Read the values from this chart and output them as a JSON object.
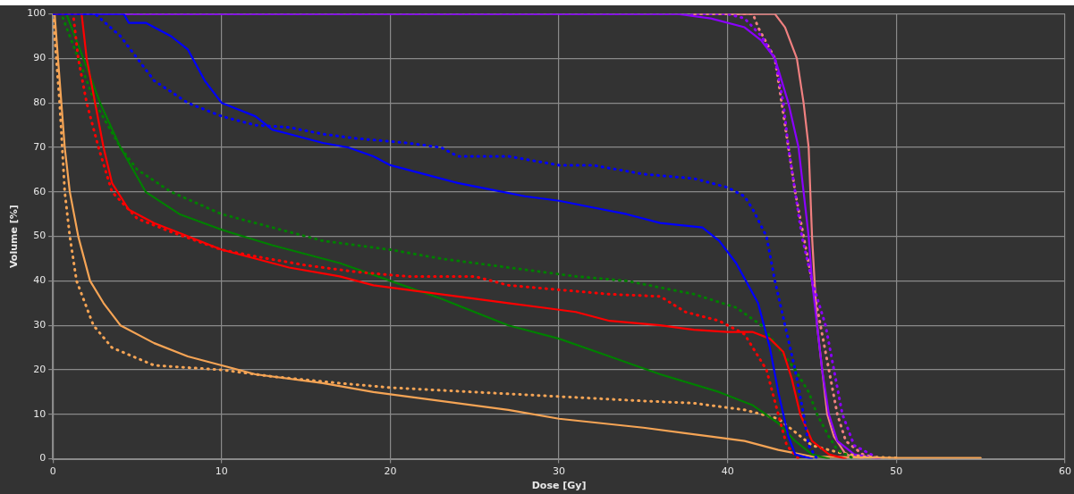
{
  "chart_data": {
    "type": "line",
    "xlabel": "Dose [Gy]",
    "ylabel": "Volume [%]",
    "xlim": [
      0,
      60
    ],
    "xticks": [
      0,
      10,
      20,
      30,
      40,
      50,
      60
    ],
    "ylim": [
      0,
      100
    ],
    "yticks": [
      0,
      10,
      20,
      30,
      40,
      50,
      60,
      70,
      80,
      90,
      100
    ],
    "grid": true,
    "legend": false,
    "marker": "none",
    "series": [
      {
        "color": "#0000ff",
        "line_style": "solid",
        "x": [
          0,
          4.2,
          4.5,
          5.5,
          7,
          8,
          9,
          10,
          12,
          13,
          14,
          16,
          17.5,
          19,
          20,
          22,
          24,
          26,
          28,
          30,
          32,
          34,
          36,
          38.5,
          39.5,
          40.5,
          41.8,
          42.5,
          43,
          43.6,
          44,
          45
        ],
        "values": [
          100,
          100,
          98,
          98,
          95,
          92,
          85,
          80,
          77,
          74,
          73,
          71,
          70,
          68,
          66,
          64,
          62,
          60.5,
          59,
          58,
          56.5,
          55,
          53,
          52,
          49,
          44,
          35,
          25,
          15,
          5,
          1,
          0
        ]
      },
      {
        "color": "#0000ff",
        "line_style": "dotted",
        "x": [
          0,
          2.5,
          4,
          5,
          6,
          8,
          10,
          12,
          14,
          16,
          18,
          21,
          23,
          24,
          27,
          30,
          32,
          35,
          38,
          40,
          41,
          41.5,
          42.3,
          42.8,
          43.4,
          44,
          44.5,
          44.8,
          45.3
        ],
        "values": [
          100,
          100,
          95,
          90,
          85,
          80,
          77,
          75,
          74.5,
          73,
          72,
          71,
          70,
          68,
          68,
          66,
          66,
          64,
          63,
          61,
          59,
          56,
          50,
          40,
          30,
          20,
          10,
          3,
          0
        ]
      },
      {
        "color": "#ff0000",
        "line_style": "solid",
        "x": [
          0,
          1.7,
          2,
          2.5,
          3,
          3.5,
          4.5,
          6,
          8,
          10,
          12,
          14,
          17,
          19,
          21,
          24,
          27,
          29,
          31,
          33,
          36,
          38,
          40,
          41.5,
          42.5,
          43.3,
          43.8,
          44.3,
          45,
          46,
          47
        ],
        "values": [
          100,
          100,
          90,
          80,
          70,
          62,
          56,
          53,
          50,
          47,
          45,
          43,
          41,
          39,
          38,
          36.5,
          35,
          34,
          33,
          31,
          30,
          29,
          28.5,
          28.5,
          27,
          24,
          18,
          10,
          4,
          1,
          0
        ]
      },
      {
        "color": "#ff0000",
        "line_style": "dotted",
        "x": [
          0,
          1.2,
          1.5,
          2,
          2.7,
          3.5,
          5,
          7,
          10,
          12,
          15,
          18,
          21,
          25,
          27,
          30,
          33,
          36,
          37.5,
          39.5,
          41,
          42.3,
          43,
          43.5,
          44.2
        ],
        "values": [
          100,
          100,
          90,
          80,
          70,
          60,
          54,
          51,
          47,
          45.5,
          43.5,
          42,
          41,
          41,
          39,
          38,
          37,
          36.5,
          33,
          31,
          28,
          20,
          10,
          3,
          0
        ]
      },
      {
        "color": "#007f00",
        "line_style": "solid",
        "x": [
          0,
          0.8,
          1.8,
          2.8,
          4,
          5.5,
          7.5,
          10,
          13,
          17,
          20,
          23,
          27,
          30,
          33,
          36,
          39.5,
          41.5,
          43,
          44,
          45,
          46
        ],
        "values": [
          100,
          100,
          90,
          80,
          70,
          60,
          55,
          51.5,
          48,
          44,
          40,
          36,
          30,
          27,
          23,
          19,
          15,
          12,
          8,
          4,
          1,
          0
        ]
      },
      {
        "color": "#007f00",
        "line_style": "dotted",
        "x": [
          0,
          0.5,
          1.5,
          2.5,
          4,
          5,
          7,
          10,
          13,
          16,
          20,
          23,
          27,
          31,
          34,
          38,
          40.5,
          42,
          43,
          44,
          44.8,
          45.3,
          46,
          46.5,
          47.5
        ],
        "values": [
          100,
          100,
          90,
          80,
          70,
          65,
          60,
          55,
          52,
          49,
          47,
          45,
          43,
          41,
          40,
          37,
          34,
          30,
          25,
          20,
          15,
          10,
          5,
          2,
          0
        ]
      },
      {
        "color": "#f5a455",
        "line_style": "solid",
        "x": [
          0,
          0.1,
          0.3,
          0.5,
          0.7,
          1,
          1.5,
          2.2,
          3,
          4,
          6,
          8,
          10,
          12,
          16,
          19,
          22,
          27,
          30,
          35,
          39,
          41,
          43,
          45,
          50,
          55
        ],
        "values": [
          100,
          100,
          90,
          80,
          70,
          60,
          50,
          40,
          35,
          30,
          26,
          23,
          21,
          19,
          17,
          15,
          13.5,
          11,
          9,
          7,
          5,
          4,
          2,
          0.5,
          0.2,
          0.2
        ]
      },
      {
        "color": "#f5a455",
        "line_style": "dotted",
        "x": [
          0,
          0.2,
          0.4,
          0.7,
          1,
          1.4,
          2.4,
          3.5,
          6,
          10,
          13,
          17,
          20,
          25,
          30,
          35,
          38,
          41,
          43,
          44,
          45,
          46.5,
          48,
          50
        ],
        "values": [
          100,
          90,
          80,
          60,
          50,
          40,
          30,
          25,
          21,
          20,
          18.5,
          17,
          16,
          15,
          14,
          13,
          12.5,
          11,
          9,
          6,
          3,
          1.5,
          0.5,
          0.2
        ]
      },
      {
        "color": "#8b00ff",
        "line_style": "solid",
        "x": [
          0,
          37,
          39,
          41,
          42,
          42.8,
          43.6,
          44.2,
          44.5,
          44.8,
          45,
          45.3,
          45.6,
          46,
          46.5,
          47.5,
          49
        ],
        "values": [
          100,
          100,
          99,
          97,
          94,
          90,
          80,
          70,
          60,
          50,
          40,
          30,
          20,
          10,
          4,
          1,
          0
        ]
      },
      {
        "color": "#8b00ff",
        "line_style": "dotted",
        "x": [
          0,
          40,
          41,
          42,
          42.8,
          43.3,
          43.6,
          44,
          44.4,
          45,
          45.8,
          46.3,
          46.8,
          47.5,
          49
        ],
        "values": [
          100,
          100,
          99,
          95,
          90,
          80,
          70,
          60,
          50,
          40,
          30,
          20,
          10,
          3,
          0
        ]
      },
      {
        "color": "#f08080",
        "line_style": "solid",
        "x": [
          38,
          42.8,
          43.4,
          44.1,
          44.5,
          44.8,
          45,
          45.3,
          45.6,
          45.9,
          46.3,
          47,
          48
        ],
        "values": [
          100,
          100,
          97,
          90,
          80,
          70,
          50,
          30,
          20,
          10,
          5,
          1,
          0
        ]
      },
      {
        "color": "#f08080",
        "line_style": "dotted",
        "x": [
          38,
          41.5,
          41.8,
          42.8,
          43.2,
          43.6,
          44,
          44.5,
          45,
          45.5,
          46,
          46.5,
          47,
          48,
          49
        ],
        "values": [
          100,
          100,
          97,
          90,
          80,
          70,
          60,
          50,
          40,
          30,
          20,
          10,
          4,
          1,
          0
        ]
      }
    ]
  }
}
